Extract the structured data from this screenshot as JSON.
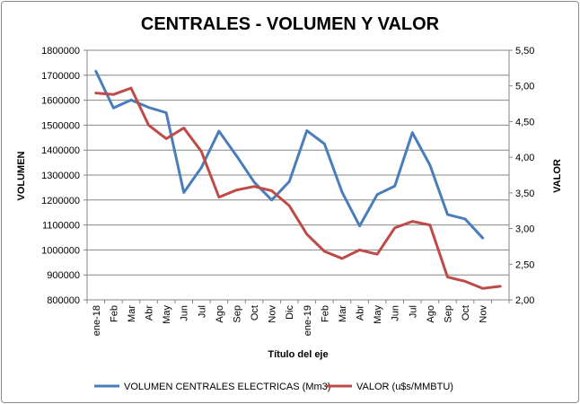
{
  "chart_data": {
    "type": "line",
    "title": "CENTRALES - VOLUMEN Y VALOR",
    "xlabel": "Título del eje",
    "ylabel": "VOLUMEN",
    "y2label": "VALOR",
    "categories": [
      "ene-18",
      "Feb",
      "Mar",
      "Abr",
      "May",
      "Jun",
      "Jul",
      "Ago",
      "Sep",
      "Oct",
      "Nov",
      "Dic",
      "ene-19",
      "Feb",
      "Mar",
      "Abr",
      "May",
      "Jun",
      "Jul",
      "Ago",
      "Sep",
      "Oct",
      "Nov",
      ""
    ],
    "ylim": [
      800000,
      1800000
    ],
    "y_ticks": [
      "800000",
      "900000",
      "1000000",
      "1100000",
      "1200000",
      "1300000",
      "1400000",
      "1500000",
      "1600000",
      "1700000",
      "1800000"
    ],
    "y2lim": [
      2.0,
      5.5
    ],
    "y2_ticks": [
      "2,00",
      "2,50",
      "3,00",
      "3,50",
      "4,00",
      "4,50",
      "5,00",
      "5,50"
    ],
    "grid": true,
    "legend_position": "bottom",
    "series": [
      {
        "name": "VOLUMEN CENTRALES ELECTRICAS (Mm3)",
        "axis": "left",
        "color": "#4a7ebb",
        "values": [
          1716000,
          1569000,
          1601000,
          1571000,
          1550000,
          1230000,
          1330000,
          1476000,
          1377000,
          1272000,
          1200000,
          1274000,
          1478000,
          1425000,
          1232000,
          1096000,
          1222000,
          1256000,
          1470000,
          1340000,
          1142000,
          1124000,
          1048000,
          null
        ]
      },
      {
        "name": "VALOR (u$s/MMBTU)",
        "axis": "right",
        "color": "#be4b48",
        "values": [
          4.9,
          4.88,
          4.97,
          4.45,
          4.26,
          4.41,
          4.08,
          3.44,
          3.54,
          3.59,
          3.53,
          3.32,
          2.92,
          2.68,
          2.58,
          2.7,
          2.64,
          3.01,
          3.1,
          3.05,
          2.32,
          2.26,
          2.16,
          2.19
        ]
      }
    ]
  }
}
